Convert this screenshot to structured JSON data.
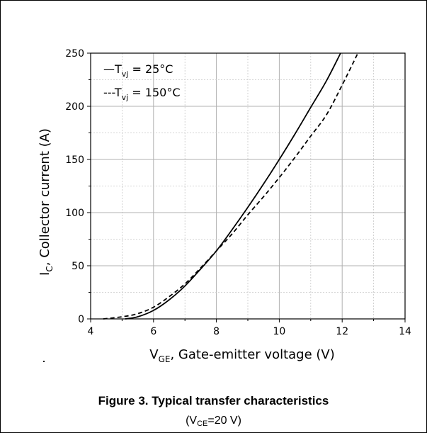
{
  "chart_data": {
    "type": "line",
    "xlabel": {
      "main": "V",
      "sub": "GE",
      "rest": ", Gate-emitter voltage (V)"
    },
    "ylabel": {
      "main": "I",
      "sub": "C",
      "rest": ", Collector current (A)"
    },
    "xlim": [
      4,
      14
    ],
    "ylim": [
      0,
      250
    ],
    "xticks": [
      4,
      6,
      8,
      10,
      12,
      14
    ],
    "yticks": [
      0,
      50,
      100,
      150,
      200,
      250
    ],
    "grid": true,
    "legend_position": "top-left",
    "series": [
      {
        "name": {
          "pre": "—T",
          "sub": "vj",
          "post": " = 25°C"
        },
        "style": "solid",
        "color": "#000000",
        "points": [
          [
            5.1,
            0
          ],
          [
            5.5,
            2
          ],
          [
            6.0,
            8
          ],
          [
            6.5,
            18
          ],
          [
            7.0,
            31
          ],
          [
            7.5,
            47
          ],
          [
            8.0,
            64
          ],
          [
            8.5,
            84
          ],
          [
            9.0,
            105
          ],
          [
            9.5,
            127
          ],
          [
            10.0,
            150
          ],
          [
            10.5,
            174
          ],
          [
            11.0,
            199
          ],
          [
            11.5,
            224
          ],
          [
            11.95,
            250
          ]
        ]
      },
      {
        "name": {
          "pre": "---T",
          "sub": "vj",
          "post": " = 150°C"
        },
        "style": "dashed",
        "color": "#000000",
        "points": [
          [
            4.4,
            0
          ],
          [
            5.0,
            2
          ],
          [
            5.5,
            5
          ],
          [
            6.0,
            11
          ],
          [
            6.5,
            21
          ],
          [
            7.0,
            33
          ],
          [
            7.5,
            48
          ],
          [
            8.0,
            64
          ],
          [
            8.5,
            80
          ],
          [
            9.0,
            98
          ],
          [
            9.5,
            115
          ],
          [
            10.0,
            133
          ],
          [
            10.5,
            152
          ],
          [
            11.0,
            172
          ],
          [
            11.5,
            192
          ],
          [
            12.0,
            220
          ],
          [
            12.5,
            250
          ]
        ]
      }
    ]
  },
  "caption": {
    "title": "Figure 3. Typical transfer characteristics",
    "sub_pre": "(V",
    "sub_sub": "CE",
    "sub_post": "=20 V)"
  }
}
